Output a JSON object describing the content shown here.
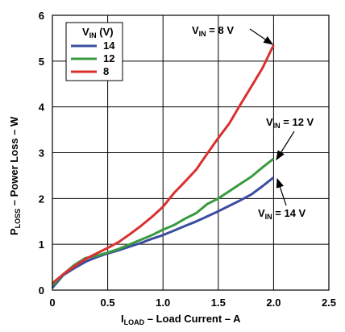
{
  "chart_data": {
    "type": "line",
    "xlim": [
      0,
      2.5
    ],
    "ylim": [
      0,
      6
    ],
    "x_ticks": [
      "0",
      "0.5",
      "1.0",
      "1.5",
      "2.0",
      "2.5"
    ],
    "y_ticks": [
      "0",
      "1",
      "2",
      "3",
      "4",
      "5",
      "6"
    ],
    "grid": true,
    "legend_position": "top-left",
    "xlabel": {
      "main": "I",
      "sub": "LOAD",
      "rest": " – Load Current – A"
    },
    "ylabel": {
      "main": "P",
      "sub": "LOSS",
      "rest": " – Power Loss – W"
    },
    "legend": {
      "title": {
        "main": "V",
        "sub": "IN",
        "rest": " (V)"
      },
      "entries": [
        "14",
        "12",
        "8"
      ]
    },
    "series": [
      {
        "name": "14",
        "color": "#3a4ea0",
        "x": [
          0,
          0.1,
          0.2,
          0.3,
          0.4,
          0.5,
          0.6,
          0.7,
          0.8,
          0.9,
          1.0,
          1.1,
          1.2,
          1.3,
          1.4,
          1.5,
          1.6,
          1.7,
          1.8,
          1.9,
          2.0
        ],
        "y": [
          0.05,
          0.33,
          0.48,
          0.62,
          0.72,
          0.8,
          0.87,
          0.95,
          1.03,
          1.12,
          1.2,
          1.3,
          1.4,
          1.5,
          1.61,
          1.72,
          1.84,
          1.96,
          2.09,
          2.27,
          2.46
        ]
      },
      {
        "name": "12",
        "color": "#3a9a40",
        "x": [
          0,
          0.1,
          0.2,
          0.3,
          0.4,
          0.5,
          0.6,
          0.7,
          0.8,
          0.9,
          1.0,
          1.1,
          1.2,
          1.3,
          1.4,
          1.5,
          1.6,
          1.7,
          1.8,
          1.9,
          2.0
        ],
        "y": [
          0.1,
          0.35,
          0.55,
          0.7,
          0.75,
          0.82,
          0.9,
          1.0,
          1.1,
          1.2,
          1.32,
          1.42,
          1.56,
          1.68,
          1.88,
          2.0,
          2.16,
          2.32,
          2.48,
          2.68,
          2.87
        ]
      },
      {
        "name": "8",
        "color": "#d93030",
        "x": [
          0,
          0.1,
          0.2,
          0.3,
          0.4,
          0.5,
          0.6,
          0.7,
          0.8,
          0.9,
          1.0,
          1.1,
          1.2,
          1.3,
          1.4,
          1.5,
          1.6,
          1.7,
          1.8,
          1.9,
          2.0
        ],
        "y": [
          0.15,
          0.35,
          0.52,
          0.68,
          0.8,
          0.92,
          1.05,
          1.22,
          1.4,
          1.6,
          1.82,
          2.12,
          2.37,
          2.63,
          2.98,
          3.32,
          3.64,
          4.05,
          4.45,
          4.85,
          5.35
        ]
      }
    ],
    "annotations": [
      {
        "main": "V",
        "sub": "IN",
        "rest": " = 8 V",
        "series": "8"
      },
      {
        "main": "V",
        "sub": "IN",
        "rest": " = 12 V",
        "series": "12"
      },
      {
        "main": "V",
        "sub": "IN",
        "rest": " = 14 V",
        "series": "14"
      }
    ]
  }
}
